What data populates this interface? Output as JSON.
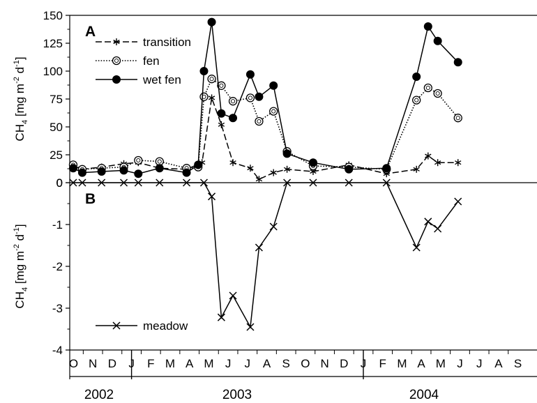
{
  "chart_data": [
    {
      "type": "line",
      "panel_label": "A",
      "ylabel": {
        "base": "CH",
        "sub": "4",
        "unit_pre": " [mg m",
        "sup1": "-2",
        "unit_mid": " d",
        "sup2": "-1",
        "unit_post": "]"
      },
      "ylim": [
        0,
        150
      ],
      "yticks": [
        "0",
        "25",
        "50",
        "75",
        "100",
        "125",
        "150"
      ],
      "grid": false,
      "legend": "top-left",
      "series": [
        {
          "name": "transition",
          "style": "dashed-asterisk",
          "points": [
            [
              -0.02,
              15
            ],
            [
              0.45,
              12
            ],
            [
              1.45,
              14
            ],
            [
              2.6,
              17
            ],
            [
              3.35,
              18
            ],
            [
              4.45,
              13
            ],
            [
              5.85,
              12
            ],
            [
              6.65,
              18
            ],
            [
              7.15,
              76
            ],
            [
              7.65,
              52
            ],
            [
              8.25,
              18
            ],
            [
              9.15,
              13
            ],
            [
              9.6,
              3
            ],
            [
              10.35,
              9
            ],
            [
              11.05,
              12
            ],
            [
              12.4,
              10
            ],
            [
              14.25,
              16
            ],
            [
              16.2,
              8
            ],
            [
              17.75,
              12
            ],
            [
              18.35,
              24
            ],
            [
              18.85,
              18
            ],
            [
              19.9,
              18
            ]
          ]
        },
        {
          "name": "fen",
          "style": "dotted-open-circle",
          "points": [
            [
              -0.02,
              16
            ],
            [
              0.45,
              12
            ],
            [
              1.45,
              13
            ],
            [
              2.6,
              14
            ],
            [
              3.35,
              20
            ],
            [
              4.45,
              19
            ],
            [
              5.85,
              13
            ],
            [
              6.45,
              14
            ],
            [
              6.75,
              77
            ],
            [
              7.15,
              93
            ],
            [
              7.65,
              87
            ],
            [
              8.25,
              73
            ],
            [
              9.15,
              76
            ],
            [
              9.6,
              55
            ],
            [
              10.35,
              64
            ],
            [
              11.05,
              28
            ],
            [
              12.4,
              15
            ],
            [
              14.25,
              14
            ],
            [
              16.2,
              12
            ],
            [
              17.75,
              74
            ],
            [
              18.35,
              85
            ],
            [
              18.85,
              80
            ],
            [
              19.9,
              58
            ]
          ]
        },
        {
          "name": "wet fen",
          "style": "solid-filled-circle",
          "points": [
            [
              -0.02,
              13
            ],
            [
              0.45,
              9
            ],
            [
              1.45,
              10
            ],
            [
              2.6,
              11
            ],
            [
              3.35,
              8
            ],
            [
              4.45,
              13
            ],
            [
              5.85,
              9
            ],
            [
              6.45,
              16
            ],
            [
              6.75,
              100
            ],
            [
              7.15,
              144
            ],
            [
              7.65,
              62
            ],
            [
              8.25,
              58
            ],
            [
              9.15,
              97
            ],
            [
              9.6,
              77
            ],
            [
              10.35,
              87
            ],
            [
              11.05,
              26
            ],
            [
              12.4,
              18
            ],
            [
              14.25,
              12
            ],
            [
              16.2,
              13
            ],
            [
              17.75,
              95
            ],
            [
              18.35,
              140
            ],
            [
              18.85,
              127
            ],
            [
              19.9,
              108
            ]
          ]
        }
      ]
    },
    {
      "type": "line",
      "panel_label": "B",
      "ylabel": {
        "base": "CH",
        "sub": "4",
        "unit_pre": " [mg m",
        "sup1": "-2",
        "unit_mid": " d",
        "sup2": "-1",
        "unit_post": "]"
      },
      "ylim": [
        -4,
        0
      ],
      "yticks": [
        "0",
        "-1",
        "-2",
        "-3",
        "-4"
      ],
      "grid": false,
      "legend": "bottom-left",
      "series": [
        {
          "name": "meadow",
          "style": "solid-x",
          "points": [
            [
              -0.02,
              0
            ],
            [
              0.45,
              0
            ],
            [
              1.45,
              0
            ],
            [
              2.6,
              0
            ],
            [
              3.35,
              0
            ],
            [
              4.45,
              0
            ],
            [
              5.85,
              0
            ],
            [
              6.75,
              0
            ],
            [
              7.15,
              -0.33
            ],
            [
              7.65,
              -3.22
            ],
            [
              8.25,
              -2.7
            ],
            [
              9.15,
              -3.45
            ],
            [
              9.6,
              -1.55
            ],
            [
              10.35,
              -1.05
            ],
            [
              11.05,
              0
            ],
            [
              12.4,
              0
            ],
            [
              14.25,
              0
            ],
            [
              16.2,
              0
            ],
            [
              17.75,
              -1.55
            ],
            [
              18.35,
              -0.93
            ],
            [
              18.85,
              -1.1
            ],
            [
              19.9,
              -0.45
            ]
          ]
        }
      ]
    }
  ],
  "x_axis": {
    "month_labels": [
      "O",
      "N",
      "D",
      "J",
      "F",
      "M",
      "A",
      "M",
      "J",
      "J",
      "A",
      "S",
      "O",
      "N",
      "D",
      "J",
      "F",
      "M",
      "A",
      "M",
      "J",
      "J",
      "A",
      "S"
    ],
    "year_labels": [
      "2002",
      "2003",
      "2004"
    ]
  }
}
